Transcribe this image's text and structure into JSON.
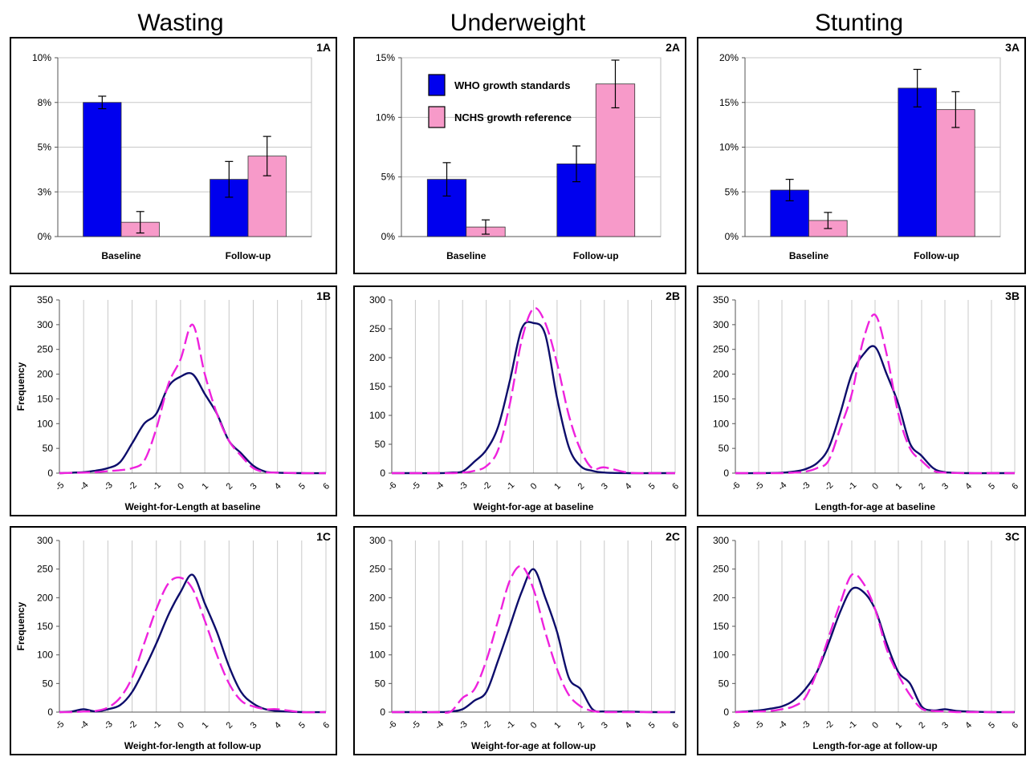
{
  "column_titles": [
    "Wasting",
    "Underweight",
    "Stunting"
  ],
  "colors": {
    "who": "#0000ee",
    "nchs": "#f79ac9",
    "who_line": "#0d0d6b",
    "nchs_line": "#ee22dd",
    "grid": "#c8c8c8"
  },
  "chart_data": [
    {
      "id": "1A",
      "type": "bar",
      "panel_label": "1A",
      "categories": [
        "Baseline",
        "Follow-up"
      ],
      "yticks": [
        "0%",
        "3%",
        "5%",
        "8%",
        "10%"
      ],
      "ylim": [
        0,
        10
      ],
      "series": [
        {
          "name": "WHO growth standards",
          "values": [
            7.5,
            3.2
          ],
          "errors": [
            0.35,
            1.0
          ]
        },
        {
          "name": "NCHS growth reference",
          "values": [
            0.8,
            4.5
          ],
          "errors": [
            0.6,
            1.1
          ]
        }
      ]
    },
    {
      "id": "2A",
      "type": "bar",
      "panel_label": "2A",
      "categories": [
        "Baseline",
        "Follow-up"
      ],
      "yticks": [
        "0%",
        "5%",
        "10%",
        "15%"
      ],
      "ylim": [
        0,
        15
      ],
      "legend": [
        "WHO growth standards",
        "NCHS growth reference"
      ],
      "series": [
        {
          "name": "WHO growth standards",
          "values": [
            4.8,
            6.1
          ],
          "errors": [
            1.4,
            1.5
          ]
        },
        {
          "name": "NCHS growth reference",
          "values": [
            0.8,
            12.8
          ],
          "errors": [
            0.6,
            2.0
          ]
        }
      ]
    },
    {
      "id": "3A",
      "type": "bar",
      "panel_label": "3A",
      "categories": [
        "Baseline",
        "Follow-up"
      ],
      "yticks": [
        "0%",
        "5%",
        "10%",
        "15%",
        "20%"
      ],
      "ylim": [
        0,
        20
      ],
      "series": [
        {
          "name": "WHO growth standards",
          "values": [
            5.2,
            16.6
          ],
          "errors": [
            1.2,
            2.1
          ]
        },
        {
          "name": "NCHS growth reference",
          "values": [
            1.8,
            14.2
          ],
          "errors": [
            0.9,
            2.0
          ]
        }
      ]
    },
    {
      "id": "1B",
      "type": "line",
      "panel_label": "1B",
      "ylabel": "Frequency",
      "xlabel": "Weight-for-Length at baseline",
      "xlim": [
        -5,
        6
      ],
      "ylim": [
        0,
        350
      ],
      "xticks": [
        "-5",
        "-4",
        "-3",
        "-2",
        "-1",
        "0",
        "1",
        "2",
        "3",
        "4",
        "5",
        "6"
      ],
      "yticks": [
        "0",
        "50",
        "100",
        "150",
        "200",
        "250",
        "300",
        "350"
      ],
      "series": [
        {
          "name": "WHO growth standards",
          "x": [
            -5,
            -4,
            -3.5,
            -3,
            -2.5,
            -2,
            -1.5,
            -1,
            -0.5,
            0,
            0.5,
            1,
            1.5,
            2,
            2.5,
            3,
            3.5,
            4,
            5,
            6
          ],
          "y": [
            0,
            2,
            5,
            10,
            22,
            60,
            100,
            120,
            175,
            195,
            200,
            160,
            120,
            65,
            40,
            15,
            3,
            1,
            0,
            0
          ]
        },
        {
          "name": "NCHS growth reference",
          "x": [
            -5,
            -4,
            -3.5,
            -3,
            -2.5,
            -2,
            -1.5,
            -1,
            -0.5,
            0,
            0.5,
            1,
            1.5,
            2,
            2.5,
            3,
            3.5,
            4,
            5,
            6
          ],
          "y": [
            0,
            1,
            2,
            4,
            6,
            10,
            25,
            90,
            180,
            230,
            300,
            200,
            120,
            65,
            35,
            10,
            2,
            1,
            0,
            0
          ]
        }
      ]
    },
    {
      "id": "2B",
      "type": "line",
      "panel_label": "2B",
      "xlabel": "Weight-for-age at baseline",
      "xlim": [
        -6,
        6
      ],
      "ylim": [
        0,
        300
      ],
      "xticks": [
        "-6",
        "-5",
        "-4",
        "-3",
        "-2",
        "-1",
        "0",
        "1",
        "2",
        "3",
        "4",
        "5",
        "6"
      ],
      "yticks": [
        "0",
        "50",
        "100",
        "150",
        "200",
        "250",
        "300"
      ],
      "series": [
        {
          "name": "WHO growth standards",
          "x": [
            -6,
            -5,
            -4,
            -3.5,
            -3,
            -2.5,
            -2,
            -1.5,
            -1,
            -0.5,
            0,
            0.5,
            1,
            1.5,
            2,
            2.5,
            3,
            4,
            5,
            6
          ],
          "y": [
            0,
            0,
            0,
            1,
            3,
            20,
            40,
            80,
            160,
            250,
            260,
            240,
            130,
            45,
            12,
            4,
            1,
            0,
            0,
            0
          ]
        },
        {
          "name": "NCHS growth reference",
          "x": [
            -6,
            -5,
            -4,
            -3.5,
            -3,
            -2.5,
            -2,
            -1.5,
            -1,
            -0.5,
            0,
            0.5,
            1,
            1.5,
            2,
            2.5,
            3,
            4,
            5,
            6
          ],
          "y": [
            0,
            0,
            0,
            0,
            1,
            4,
            12,
            40,
            120,
            230,
            285,
            260,
            190,
            100,
            40,
            8,
            10,
            1,
            0,
            0
          ]
        }
      ]
    },
    {
      "id": "3B",
      "type": "line",
      "panel_label": "3B",
      "xlabel": "Length-for-age at baseline",
      "xlim": [
        -6,
        6
      ],
      "ylim": [
        0,
        350
      ],
      "xticks": [
        "-6",
        "-5",
        "-4",
        "-3",
        "-2",
        "-1",
        "0",
        "1",
        "2",
        "3",
        "4",
        "5",
        "6"
      ],
      "yticks": [
        "0",
        "50",
        "100",
        "150",
        "200",
        "250",
        "300",
        "350"
      ],
      "series": [
        {
          "name": "WHO growth standards",
          "x": [
            -6,
            -5,
            -4,
            -3.5,
            -3,
            -2.5,
            -2,
            -1.5,
            -1,
            -0.5,
            0,
            0.5,
            1,
            1.5,
            2,
            2.5,
            3,
            4,
            5,
            6
          ],
          "y": [
            0,
            0,
            1,
            3,
            8,
            20,
            50,
            120,
            200,
            240,
            255,
            200,
            140,
            60,
            35,
            10,
            2,
            0,
            0,
            0
          ]
        },
        {
          "name": "NCHS growth reference",
          "x": [
            -6,
            -5,
            -4,
            -3.5,
            -3,
            -2.5,
            -2,
            -1.5,
            -1,
            -0.5,
            0,
            0.5,
            1,
            1.5,
            2,
            2.5,
            3,
            4,
            5,
            6
          ],
          "y": [
            0,
            0,
            0,
            1,
            3,
            10,
            25,
            90,
            160,
            270,
            320,
            240,
            120,
            50,
            25,
            5,
            1,
            0,
            0,
            0
          ]
        }
      ]
    },
    {
      "id": "1C",
      "type": "line",
      "panel_label": "1C",
      "ylabel": "Frequency",
      "xlabel": "Weight-for-length at follow-up",
      "xlim": [
        -5,
        6
      ],
      "ylim": [
        0,
        300
      ],
      "xticks": [
        "-5",
        "-4",
        "-3",
        "-2",
        "-1",
        "0",
        "1",
        "2",
        "3",
        "4",
        "5",
        "6"
      ],
      "yticks": [
        "0",
        "50",
        "100",
        "150",
        "200",
        "250",
        "300"
      ],
      "series": [
        {
          "name": "WHO growth standards",
          "x": [
            -5,
            -4.5,
            -4,
            -3.5,
            -3,
            -2.5,
            -2,
            -1.5,
            -1,
            -0.5,
            0,
            0.5,
            1,
            1.5,
            2,
            2.5,
            3,
            3.5,
            4,
            5,
            6
          ],
          "y": [
            0,
            1,
            5,
            1,
            5,
            12,
            35,
            75,
            120,
            170,
            210,
            240,
            190,
            140,
            80,
            35,
            15,
            5,
            2,
            0,
            0
          ]
        },
        {
          "name": "NCHS growth reference",
          "x": [
            -5,
            -4.5,
            -4,
            -3.5,
            -3,
            -2.5,
            -2,
            -1.5,
            -1,
            -0.5,
            0,
            0.5,
            1,
            1.5,
            2,
            2.5,
            3,
            3.5,
            4,
            5,
            6
          ],
          "y": [
            0,
            0,
            1,
            2,
            8,
            25,
            60,
            120,
            180,
            225,
            235,
            215,
            160,
            100,
            50,
            20,
            10,
            5,
            5,
            0,
            0
          ]
        }
      ]
    },
    {
      "id": "2C",
      "type": "line",
      "panel_label": "2C",
      "xlabel": "Weight-for-age at follow-up",
      "xlim": [
        -6,
        6
      ],
      "ylim": [
        0,
        300
      ],
      "xticks": [
        "-6",
        "-5",
        "-4",
        "-3",
        "-2",
        "-1",
        "0",
        "1",
        "2",
        "3",
        "4",
        "5",
        "6"
      ],
      "yticks": [
        "0",
        "50",
        "100",
        "150",
        "200",
        "250",
        "300"
      ],
      "series": [
        {
          "name": "WHO growth standards",
          "x": [
            -6,
            -5,
            -4,
            -3.5,
            -3,
            -2.5,
            -2,
            -1.5,
            -1,
            -0.5,
            0,
            0.5,
            1,
            1.5,
            2,
            2.5,
            3,
            4,
            5,
            6
          ],
          "y": [
            0,
            0,
            0,
            1,
            5,
            20,
            35,
            90,
            150,
            210,
            250,
            200,
            140,
            60,
            40,
            5,
            1,
            1,
            0,
            0
          ]
        },
        {
          "name": "NCHS growth reference",
          "x": [
            -6,
            -5,
            -4,
            -3.5,
            -3,
            -2.5,
            -2,
            -1.5,
            -1,
            -0.5,
            0,
            0.5,
            1,
            1.5,
            2,
            2.5,
            3,
            4,
            5,
            6
          ],
          "y": [
            0,
            0,
            0,
            1,
            25,
            40,
            90,
            160,
            230,
            255,
            215,
            140,
            75,
            30,
            10,
            2,
            0,
            0,
            0,
            0
          ]
        }
      ]
    },
    {
      "id": "3C",
      "type": "line",
      "panel_label": "3C",
      "xlabel": "Length-for-age at follow-up",
      "xlim": [
        -6,
        6
      ],
      "ylim": [
        0,
        300
      ],
      "xticks": [
        "-6",
        "-5",
        "-4",
        "-3",
        "-2",
        "-1",
        "0",
        "1",
        "2",
        "3",
        "4",
        "5",
        "6"
      ],
      "yticks": [
        "0",
        "50",
        "100",
        "150",
        "200",
        "250",
        "300"
      ],
      "series": [
        {
          "name": "WHO growth standards",
          "x": [
            -6,
            -5,
            -4.5,
            -4,
            -3.5,
            -3,
            -2.5,
            -2,
            -1.5,
            -1,
            -0.5,
            0,
            0.5,
            1,
            1.5,
            2,
            2.5,
            3,
            3.5,
            4,
            5,
            6
          ],
          "y": [
            0,
            3,
            6,
            10,
            20,
            40,
            70,
            120,
            175,
            215,
            210,
            180,
            120,
            70,
            50,
            10,
            3,
            5,
            2,
            1,
            0,
            0
          ]
        },
        {
          "name": "NCHS growth reference",
          "x": [
            -6,
            -5,
            -4.5,
            -4,
            -3.5,
            -3,
            -2.5,
            -2,
            -1.5,
            -1,
            -0.5,
            0,
            0.5,
            1,
            1.5,
            2,
            2.5,
            3,
            3.5,
            4,
            5,
            6
          ],
          "y": [
            0,
            1,
            2,
            5,
            10,
            25,
            70,
            130,
            190,
            240,
            225,
            180,
            110,
            65,
            30,
            6,
            2,
            1,
            0,
            0,
            0,
            0
          ]
        }
      ]
    }
  ]
}
